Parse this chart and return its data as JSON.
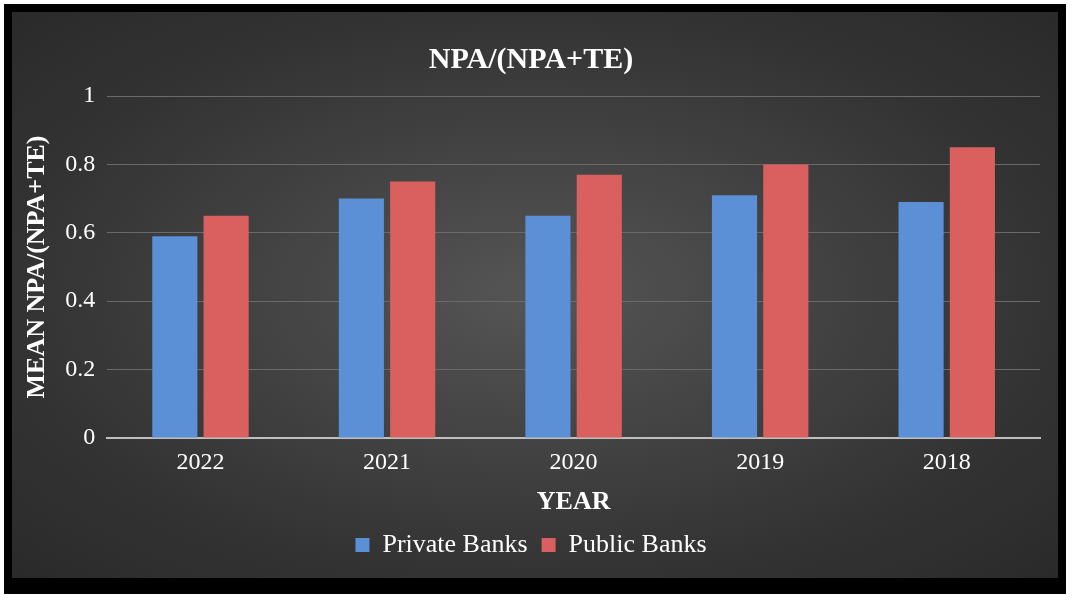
{
  "chart_data": {
    "type": "bar",
    "title": "NPA/(NPA+TE)",
    "xlabel": "YEAR",
    "ylabel": "MEAN NPA/(NPA+TE)",
    "categories": [
      "2022",
      "2021",
      "2020",
      "2019",
      "2018"
    ],
    "series": [
      {
        "name": "Private Banks",
        "color": "#5b8fd6",
        "values": [
          0.59,
          0.7,
          0.65,
          0.71,
          0.69
        ]
      },
      {
        "name": "Public Banks",
        "color": "#d9605e",
        "values": [
          0.65,
          0.75,
          0.77,
          0.8,
          0.85
        ]
      }
    ],
    "ylim": [
      0,
      1
    ],
    "yticks": [
      0,
      0.2,
      0.4,
      0.6,
      0.8,
      1
    ],
    "grid": "y",
    "legend": "bottom"
  }
}
